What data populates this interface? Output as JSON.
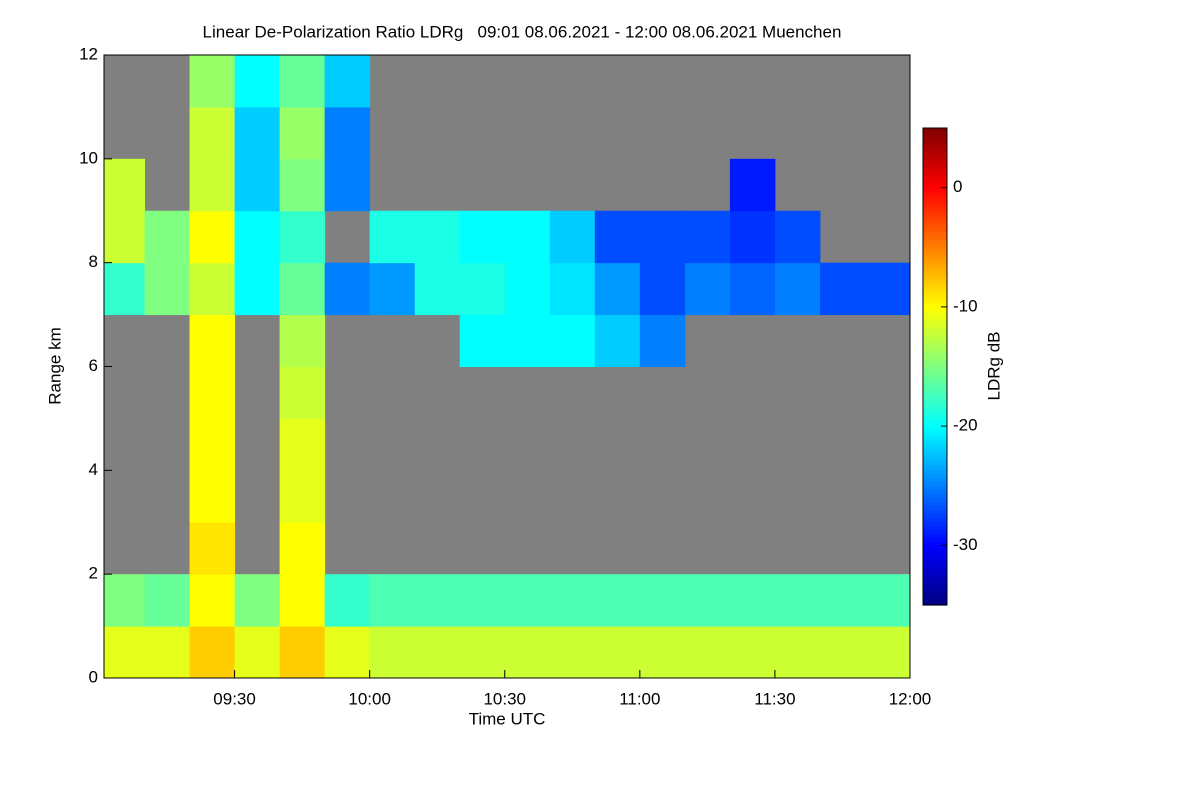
{
  "chart_data": {
    "type": "heatmap",
    "title": "Linear De-Polarization Ratio LDRg   09:01 08.06.2021 - 12:00 08.06.2021 Muenchen",
    "xlabel": "Time UTC",
    "ylabel": "Range km",
    "colorbar_label": "LDRg dB",
    "colorscale": "jet",
    "background": "#808080",
    "xlim": [
      541,
      720
    ],
    "xticks": [
      {
        "value": 570,
        "label": "09:30"
      },
      {
        "value": 600,
        "label": "10:00"
      },
      {
        "value": 630,
        "label": "10:30"
      },
      {
        "value": 660,
        "label": "11:00"
      },
      {
        "value": 690,
        "label": "11:30"
      },
      {
        "value": 720,
        "label": "12:00"
      }
    ],
    "ylim": [
      0,
      12
    ],
    "yticks": [
      0,
      2,
      4,
      6,
      8,
      10,
      12
    ],
    "zlim": [
      -35,
      5
    ],
    "zticks": [
      0,
      -10,
      -20,
      -30
    ],
    "x_bins": [
      540,
      550,
      560,
      570,
      580,
      590,
      600,
      610,
      620,
      630,
      640,
      650,
      660,
      670,
      680,
      690,
      700,
      710,
      720
    ],
    "y_bins": [
      0,
      1,
      2,
      3,
      4,
      5,
      6,
      7,
      8,
      9,
      10,
      11,
      12
    ],
    "z": [
      [
        -11,
        -11,
        -8,
        -11,
        -8,
        -11,
        -12,
        -12,
        -12,
        -12,
        -12,
        -12,
        -12,
        -12,
        -12,
        -12,
        -12,
        -12
      ],
      [
        -15,
        -16,
        -10,
        -15,
        -10,
        -18,
        -17,
        -17,
        -17,
        -17,
        -17,
        -17,
        -17,
        -17,
        -17,
        -17,
        -17,
        -17
      ],
      [
        null,
        null,
        -9,
        null,
        -10,
        null,
        null,
        null,
        null,
        null,
        null,
        null,
        null,
        null,
        null,
        null,
        null,
        null
      ],
      [
        null,
        null,
        -10,
        null,
        -11,
        null,
        null,
        null,
        null,
        null,
        null,
        null,
        null,
        null,
        null,
        null,
        null,
        null
      ],
      [
        null,
        null,
        -10,
        null,
        -11,
        null,
        null,
        null,
        null,
        null,
        null,
        null,
        null,
        null,
        null,
        null,
        null,
        null
      ],
      [
        null,
        null,
        -10,
        null,
        -12,
        null,
        null,
        null,
        null,
        null,
        null,
        null,
        null,
        null,
        null,
        null,
        null,
        null
      ],
      [
        null,
        null,
        -10,
        null,
        -13,
        null,
        null,
        null,
        -20,
        -20,
        -20,
        -22,
        -25,
        null,
        null,
        null,
        null,
        null
      ],
      [
        -18,
        -15,
        -12,
        -20,
        -16,
        -25,
        -24,
        -19,
        -19,
        -20,
        -21,
        -24,
        -27,
        -25,
        -26,
        -25,
        -27,
        -27
      ],
      [
        -12,
        -15,
        -10,
        -20,
        -18,
        null,
        -19,
        -19,
        -20,
        -20,
        -22,
        -27,
        -27,
        -27,
        -28,
        -27,
        null,
        null
      ],
      [
        -12,
        null,
        -12,
        -22,
        -15,
        -25,
        null,
        null,
        null,
        null,
        null,
        null,
        null,
        null,
        -29,
        null,
        null,
        null
      ],
      [
        null,
        null,
        -12,
        -22,
        -14,
        -25,
        null,
        null,
        null,
        null,
        null,
        null,
        null,
        null,
        null,
        null,
        null,
        null
      ],
      [
        null,
        null,
        -14,
        -20,
        -16,
        -22,
        null,
        null,
        null,
        null,
        null,
        null,
        null,
        null,
        null,
        null,
        null,
        null
      ]
    ]
  }
}
